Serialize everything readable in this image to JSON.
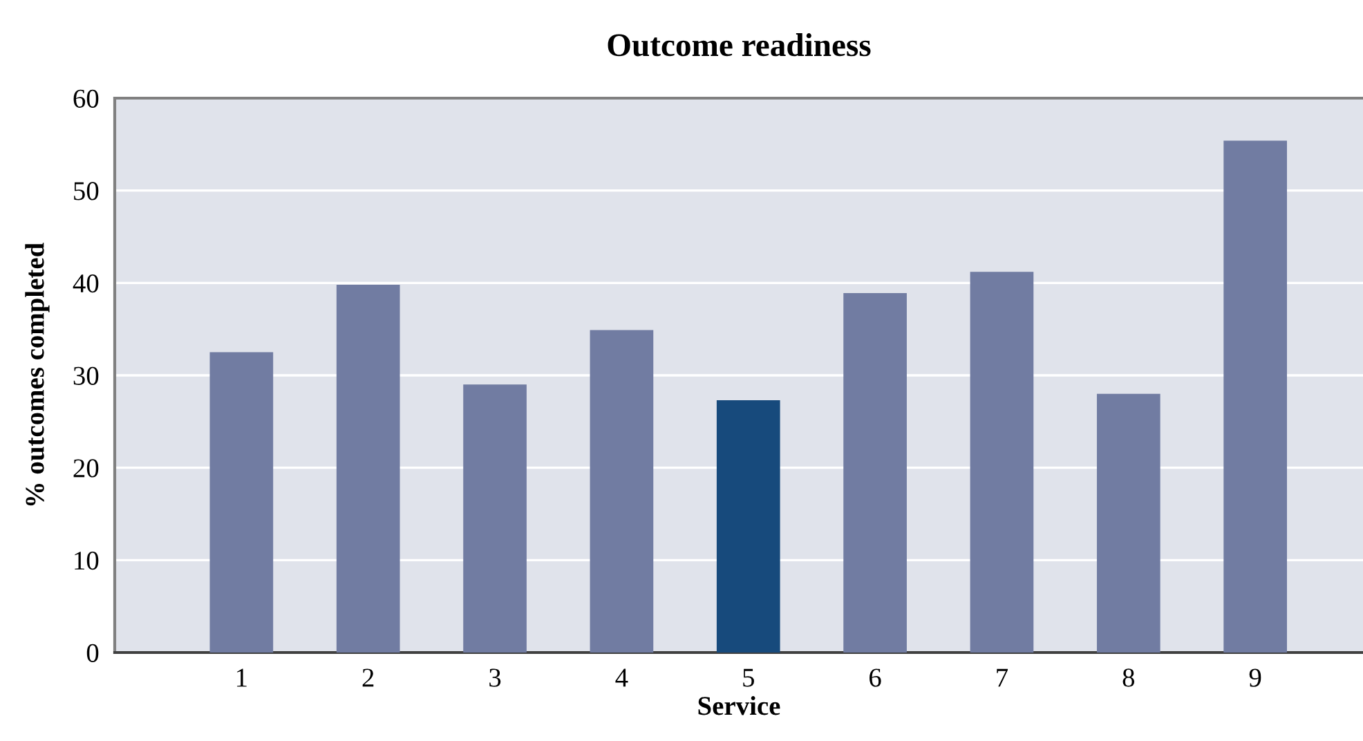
{
  "chart_data": {
    "type": "bar",
    "title": "Outcome readiness",
    "xlabel": "Service",
    "ylabel": "% outcomes completed",
    "categories": [
      "1",
      "2",
      "3",
      "4",
      "5",
      "6",
      "7",
      "8",
      "9"
    ],
    "values": [
      32.5,
      39.8,
      29.0,
      34.9,
      27.3,
      38.9,
      41.2,
      28.0,
      55.4
    ],
    "colors": [
      "#717ca2",
      "#717ca2",
      "#717ca2",
      "#717ca2",
      "#174a7c",
      "#717ca2",
      "#717ca2",
      "#717ca2",
      "#717ca2"
    ],
    "ylim": [
      0,
      60
    ],
    "yticks": [
      0,
      10,
      20,
      30,
      40,
      50,
      60
    ],
    "grid": "y"
  }
}
